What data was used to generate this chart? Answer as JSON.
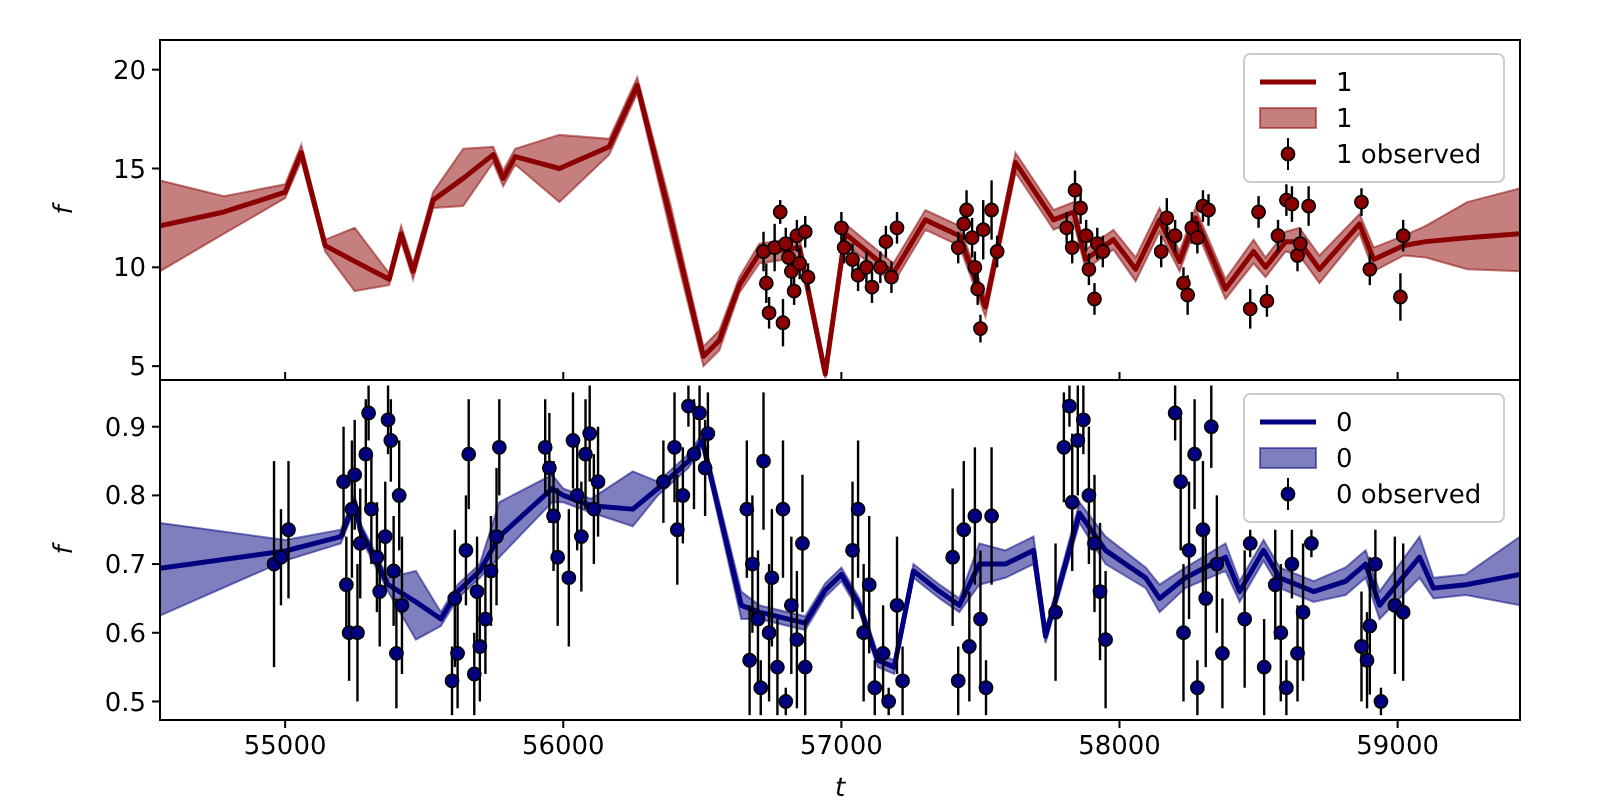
{
  "chart_data": [
    {
      "type": "line",
      "ylabel": "f",
      "xlim": [
        54550,
        59440
      ],
      "ylim": [
        4.3,
        21.5
      ],
      "xticks": [
        55000,
        56000,
        57000,
        58000,
        59000
      ],
      "yticks": [
        5,
        10,
        15,
        20
      ],
      "tick_labels": "y",
      "grid": false,
      "legend": "top right",
      "line_style": "solid",
      "series": [
        {
          "name": "1",
          "color": "#8b0000",
          "x": [
            54550,
            54780,
            55000,
            55058,
            55144,
            55250,
            55374,
            55417,
            55460,
            55532,
            55640,
            55748,
            55784,
            55827,
            55986,
            56165,
            56266,
            56385,
            56504,
            56561,
            56633,
            56705,
            56849,
            56942,
            57014,
            57187,
            57302,
            57424,
            57518,
            57626,
            57763,
            57835,
            57878,
            57978,
            58058,
            58144,
            58216,
            58273,
            58381,
            58482,
            58525,
            58597,
            58647,
            58719,
            58863,
            58914,
            59022,
            59101,
            59250,
            59440
          ],
          "values": [
            12.1,
            12.8,
            13.8,
            15.8,
            11.1,
            10.3,
            9.4,
            11.7,
            9.8,
            13.4,
            14.5,
            15.7,
            14.5,
            15.6,
            15.0,
            16.1,
            19.2,
            12.5,
            5.5,
            6.3,
            9.1,
            10.7,
            11.0,
            4.6,
            11.7,
            9.7,
            12.4,
            11.6,
            8.0,
            15.3,
            12.4,
            12.8,
            10.4,
            11.4,
            9.9,
            12.4,
            10.3,
            12.5,
            8.9,
            10.8,
            10.0,
            11.3,
            11.3,
            9.9,
            12.2,
            10.4,
            11.1,
            11.3,
            11.5,
            11.7
          ],
          "lower": [
            9.8,
            11.7,
            13.5,
            15.4,
            10.8,
            8.8,
            9.1,
            11.3,
            9.4,
            13.0,
            13.1,
            15.3,
            14.1,
            15.2,
            13.3,
            15.7,
            18.8,
            11.8,
            5.0,
            5.8,
            8.7,
            10.2,
            10.5,
            4.4,
            11.2,
            9.2,
            11.9,
            11.1,
            7.5,
            14.8,
            11.9,
            12.3,
            9.9,
            10.9,
            9.3,
            11.8,
            9.8,
            12.0,
            8.4,
            10.2,
            9.5,
            10.8,
            10.6,
            9.2,
            11.7,
            9.8,
            10.6,
            10.5,
            9.9,
            9.8
          ],
          "upper": [
            14.4,
            13.6,
            14.2,
            16.2,
            11.4,
            12.0,
            9.7,
            12.1,
            10.2,
            13.8,
            16.0,
            16.1,
            14.9,
            16.0,
            16.7,
            16.5,
            19.6,
            13.2,
            6.0,
            6.8,
            9.5,
            11.2,
            11.5,
            5.0,
            12.2,
            10.2,
            12.9,
            12.1,
            8.5,
            15.8,
            12.9,
            13.3,
            10.9,
            11.9,
            10.5,
            13.0,
            10.8,
            13.0,
            9.4,
            11.4,
            10.5,
            11.8,
            12.0,
            10.6,
            12.7,
            11.0,
            11.6,
            12.1,
            13.3,
            14.0
          ]
        },
        {
          "name": "1 observed",
          "type": "scatter",
          "marker": "circle",
          "color": "#8b0000",
          "x": [
            56720,
            56730,
            56740,
            56760,
            56780,
            56790,
            56800,
            56810,
            56820,
            56830,
            56840,
            56850,
            56870,
            56880,
            57000,
            57010,
            57040,
            57060,
            57090,
            57110,
            57140,
            57160,
            57180,
            57200,
            57420,
            57440,
            57450,
            57470,
            57480,
            57490,
            57500,
            57510,
            57540,
            57560,
            57810,
            57830,
            57840,
            57860,
            57880,
            57890,
            57910,
            57920,
            57940,
            58150,
            58170,
            58200,
            58230,
            58245,
            58260,
            58280,
            58300,
            58320,
            58470,
            58500,
            58530,
            58570,
            58600,
            58620,
            58640,
            58650,
            58680,
            58870,
            58900,
            59010,
            59020
          ],
          "values": [
            10.8,
            9.2,
            7.7,
            11.0,
            12.8,
            7.2,
            11.2,
            10.5,
            9.8,
            8.8,
            11.6,
            10.2,
            11.8,
            9.5,
            12.0,
            11.0,
            10.4,
            9.6,
            10.0,
            9.0,
            10.0,
            11.3,
            9.5,
            12.0,
            11.0,
            12.2,
            12.9,
            11.5,
            10.0,
            8.9,
            6.9,
            11.9,
            12.9,
            10.8,
            12.0,
            11.0,
            13.9,
            13.0,
            11.6,
            9.9,
            8.4,
            11.2,
            10.8,
            10.8,
            12.5,
            11.6,
            9.2,
            8.6,
            12.0,
            11.5,
            13.1,
            12.9,
            7.9,
            12.8,
            8.3,
            11.6,
            13.4,
            13.2,
            10.6,
            11.2,
            13.1,
            13.3,
            9.9,
            8.5,
            11.6
          ],
          "errors": [
            1.0,
            1.0,
            0.8,
            1.2,
            0.6,
            1.2,
            0.8,
            1.0,
            0.9,
            0.7,
            0.8,
            0.8,
            0.8,
            0.7,
            0.8,
            0.8,
            0.8,
            0.8,
            0.8,
            0.8,
            0.8,
            0.8,
            0.8,
            0.8,
            0.8,
            0.8,
            1.0,
            1.0,
            0.8,
            0.8,
            0.7,
            1.5,
            1.5,
            0.8,
            0.8,
            0.8,
            1.0,
            0.8,
            0.8,
            0.8,
            0.8,
            0.8,
            0.8,
            0.8,
            1.0,
            0.8,
            0.8,
            1.0,
            0.8,
            0.8,
            0.8,
            0.8,
            1.0,
            0.8,
            0.8,
            0.8,
            0.8,
            0.9,
            0.8,
            0.8,
            1.0,
            0.7,
            0.8,
            1.2,
            0.8
          ]
        }
      ]
    },
    {
      "type": "line",
      "xlabel": "t",
      "ylabel": "f",
      "xlim": [
        54550,
        59440
      ],
      "ylim": [
        0.473,
        0.968
      ],
      "xticks": [
        55000,
        56000,
        57000,
        58000,
        59000
      ],
      "yticks": [
        0.5,
        0.6,
        0.7,
        0.8,
        0.9
      ],
      "grid": false,
      "legend": "top right",
      "line_style": "solid",
      "series": [
        {
          "name": "0",
          "color": "#000080",
          "x": [
            54550,
            55000,
            55200,
            55250,
            55270,
            55370,
            55470,
            55560,
            55620,
            55700,
            55770,
            55960,
            56000,
            56100,
            56250,
            56340,
            56450,
            56500,
            56640,
            56705,
            56870,
            56942,
            57000,
            57065,
            57130,
            57190,
            57259,
            57353,
            57424,
            57496,
            57590,
            57691,
            57734,
            57856,
            57950,
            58094,
            58144,
            58237,
            58381,
            58432,
            58518,
            58576,
            58698,
            58813,
            58885,
            58935,
            59079,
            59129,
            59245,
            59440
          ],
          "values": [
            0.694,
            0.719,
            0.74,
            0.79,
            0.75,
            0.67,
            0.645,
            0.62,
            0.66,
            0.69,
            0.74,
            0.81,
            0.8,
            0.785,
            0.78,
            0.81,
            0.85,
            0.88,
            0.64,
            0.63,
            0.614,
            0.662,
            0.685,
            0.64,
            0.56,
            0.55,
            0.69,
            0.66,
            0.64,
            0.7,
            0.7,
            0.72,
            0.595,
            0.774,
            0.72,
            0.68,
            0.65,
            0.68,
            0.71,
            0.66,
            0.72,
            0.68,
            0.66,
            0.675,
            0.7,
            0.64,
            0.71,
            0.665,
            0.67,
            0.685
          ],
          "lower": [
            0.625,
            0.705,
            0.73,
            0.78,
            0.74,
            0.66,
            0.59,
            0.61,
            0.65,
            0.68,
            0.71,
            0.79,
            0.79,
            0.775,
            0.755,
            0.8,
            0.84,
            0.87,
            0.62,
            0.62,
            0.604,
            0.652,
            0.675,
            0.63,
            0.55,
            0.54,
            0.68,
            0.65,
            0.63,
            0.67,
            0.68,
            0.7,
            0.585,
            0.76,
            0.7,
            0.665,
            0.63,
            0.665,
            0.69,
            0.645,
            0.705,
            0.665,
            0.645,
            0.655,
            0.68,
            0.62,
            0.68,
            0.65,
            0.655,
            0.64
          ],
          "upper": [
            0.76,
            0.735,
            0.75,
            0.8,
            0.76,
            0.68,
            0.69,
            0.63,
            0.67,
            0.7,
            0.79,
            0.83,
            0.81,
            0.795,
            0.835,
            0.82,
            0.86,
            0.89,
            0.66,
            0.64,
            0.624,
            0.672,
            0.695,
            0.65,
            0.57,
            0.56,
            0.7,
            0.67,
            0.65,
            0.73,
            0.72,
            0.74,
            0.605,
            0.79,
            0.74,
            0.695,
            0.67,
            0.695,
            0.73,
            0.675,
            0.735,
            0.695,
            0.675,
            0.695,
            0.72,
            0.66,
            0.74,
            0.68,
            0.685,
            0.74
          ]
        },
        {
          "name": "0 observed",
          "type": "scatter",
          "marker": "circle",
          "color": "#000080",
          "x": [
            54960,
            54985,
            55012,
            55210,
            55220,
            55230,
            55240,
            55250,
            55260,
            55270,
            55290,
            55300,
            55310,
            55330,
            55340,
            55360,
            55370,
            55380,
            55390,
            55400,
            55410,
            55420,
            55600,
            55610,
            55620,
            55650,
            55660,
            55680,
            55690,
            55700,
            55720,
            55740,
            55760,
            55770,
            55935,
            55950,
            55965,
            55980,
            56020,
            56035,
            56050,
            56065,
            56080,
            56095,
            56110,
            56125,
            56360,
            56400,
            56410,
            56430,
            56450,
            56470,
            56490,
            56510,
            56520,
            56660,
            56670,
            56680,
            56700,
            56710,
            56720,
            56740,
            56750,
            56770,
            56790,
            56800,
            56820,
            56840,
            56860,
            56870,
            57040,
            57060,
            57080,
            57100,
            57120,
            57150,
            57170,
            57200,
            57220,
            57400,
            57420,
            57440,
            57460,
            57480,
            57500,
            57520,
            57540,
            57770,
            57800,
            57820,
            57830,
            57850,
            57870,
            57890,
            57910,
            57930,
            57950,
            58200,
            58220,
            58230,
            58250,
            58270,
            58280,
            58300,
            58310,
            58330,
            58350,
            58370,
            58450,
            58470,
            58520,
            58560,
            58580,
            58600,
            58620,
            58640,
            58660,
            58690,
            58870,
            58890,
            58900,
            58920,
            58940,
            58990,
            59020
          ],
          "values": [
            0.7,
            0.71,
            0.75,
            0.82,
            0.67,
            0.6,
            0.78,
            0.83,
            0.6,
            0.73,
            0.86,
            0.92,
            0.78,
            0.71,
            0.66,
            0.74,
            0.91,
            0.88,
            0.69,
            0.57,
            0.8,
            0.64,
            0.53,
            0.65,
            0.57,
            0.72,
            0.86,
            0.54,
            0.66,
            0.58,
            0.62,
            0.69,
            0.74,
            0.87,
            0.87,
            0.84,
            0.77,
            0.71,
            0.68,
            0.88,
            0.8,
            0.74,
            0.86,
            0.89,
            0.78,
            0.82,
            0.82,
            0.87,
            0.75,
            0.8,
            0.93,
            0.86,
            0.92,
            0.84,
            0.89,
            0.78,
            0.56,
            0.7,
            0.62,
            0.52,
            0.85,
            0.6,
            0.68,
            0.55,
            0.78,
            0.5,
            0.64,
            0.59,
            0.73,
            0.55,
            0.72,
            0.78,
            0.6,
            0.67,
            0.52,
            0.57,
            0.5,
            0.64,
            0.53,
            0.71,
            0.53,
            0.75,
            0.58,
            0.77,
            0.62,
            0.52,
            0.77,
            0.63,
            0.87,
            0.93,
            0.79,
            0.88,
            0.91,
            0.8,
            0.73,
            0.66,
            0.59,
            0.92,
            0.82,
            0.6,
            0.72,
            0.86,
            0.52,
            0.75,
            0.65,
            0.9,
            0.7,
            0.57,
            0.62,
            0.73,
            0.55,
            0.67,
            0.6,
            0.52,
            0.7,
            0.57,
            0.63,
            0.73,
            0.58,
            0.56,
            0.61,
            0.7,
            0.5,
            0.64,
            0.63
          ],
          "errors": [
            0.15,
            0.07,
            0.1,
            0.08,
            0.07,
            0.07,
            0.1,
            0.08,
            0.1,
            0.08,
            0.08,
            0.04,
            0.08,
            0.08,
            0.08,
            0.08,
            0.05,
            0.06,
            0.08,
            0.08,
            0.08,
            0.1,
            0.05,
            0.1,
            0.08,
            0.08,
            0.08,
            0.06,
            0.08,
            0.08,
            0.08,
            0.08,
            0.1,
            0.07,
            0.07,
            0.08,
            0.08,
            0.1,
            0.1,
            0.07,
            0.08,
            0.08,
            0.08,
            0.07,
            0.08,
            0.08,
            0.06,
            0.08,
            0.08,
            0.07,
            0.03,
            0.08,
            0.04,
            0.07,
            0.06,
            0.1,
            0.08,
            0.1,
            0.1,
            0.04,
            0.1,
            0.1,
            0.1,
            0.07,
            0.1,
            0.02,
            0.1,
            0.1,
            0.1,
            0.07,
            0.1,
            0.1,
            0.1,
            0.1,
            0.04,
            0.07,
            0.02,
            0.1,
            0.05,
            0.1,
            0.05,
            0.1,
            0.08,
            0.1,
            0.1,
            0.04,
            0.1,
            0.1,
            0.08,
            0.03,
            0.1,
            0.08,
            0.05,
            0.1,
            0.1,
            0.1,
            0.1,
            0.04,
            0.1,
            0.1,
            0.1,
            0.08,
            0.04,
            0.1,
            0.1,
            0.06,
            0.1,
            0.08,
            0.1,
            0.02,
            0.07,
            0.08,
            0.1,
            0.04,
            0.05,
            0.07,
            0.1,
            0.02,
            0.08,
            0.07,
            0.1,
            0.05,
            0.02,
            0.1,
            0.1
          ]
        }
      ]
    }
  ]
}
